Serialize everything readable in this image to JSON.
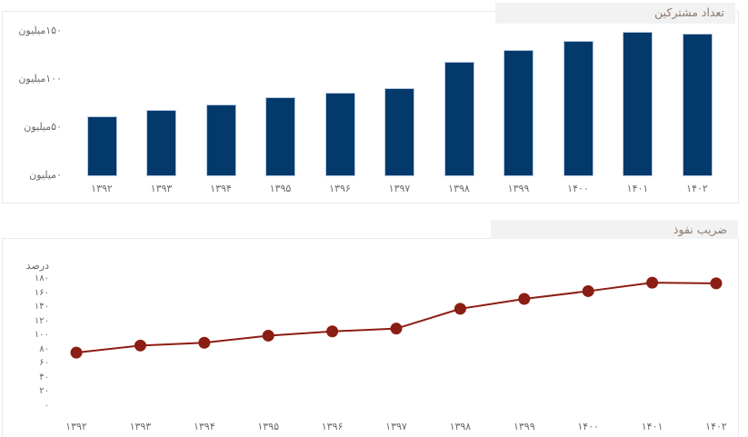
{
  "page": {
    "background": "#ffffff"
  },
  "chart_data": [
    {
      "type": "bar",
      "title": "تعداد مشترکین",
      "categories": [
        "۱۳۹۲",
        "۱۳۹۳",
        "۱۳۹۴",
        "۱۳۹۵",
        "۱۳۹۶",
        "۱۳۹۷",
        "۱۳۹۸",
        "۱۳۹۹",
        "۱۴۰۰",
        "۱۴۰۱",
        "۱۴۰۲"
      ],
      "values": [
        62,
        69,
        75,
        82,
        87,
        92,
        119,
        131,
        141,
        150,
        148
      ],
      "xlabel": "",
      "ylabel": "",
      "ylim": [
        0,
        155
      ],
      "grid": false,
      "legend": "none",
      "yticks": [
        {
          "value": 0,
          "label": "۰میلیون"
        },
        {
          "value": 50,
          "label": "۵۰میلیون"
        },
        {
          "value": 100,
          "label": "۱۰۰میلیون"
        },
        {
          "value": 150,
          "label": "۱۵۰میلیون"
        }
      ],
      "bar_color": "#04396b",
      "bar_edge_color": "#b3c9e0",
      "axis_label_color": "#6a6a6a",
      "title_color": "#8c7a6e",
      "title_background": "#f2f2f2"
    },
    {
      "type": "line",
      "title": "ضریب نفوذ",
      "categories": [
        "۱۳۹۲",
        "۱۳۹۳",
        "۱۳۹۴",
        "۱۳۹۵",
        "۱۳۹۶",
        "۱۳۹۷",
        "۱۳۹۸",
        "۱۳۹۹",
        "۱۴۰۰",
        "۱۴۰۱",
        "۱۴۰۲"
      ],
      "values": [
        77,
        87,
        91,
        101,
        107,
        111,
        139,
        153,
        164,
        176,
        175
      ],
      "xlabel": "",
      "ylabel": "درصد",
      "ylim": [
        0,
        190
      ],
      "grid": false,
      "legend": "none",
      "yticks": [
        {
          "value": 0,
          "label": "۰"
        },
        {
          "value": 20,
          "label": "۲۰"
        },
        {
          "value": 40,
          "label": "۴۰"
        },
        {
          "value": 60,
          "label": "۶۰"
        },
        {
          "value": 80,
          "label": "۸۰"
        },
        {
          "value": 100,
          "label": "۱۰۰"
        },
        {
          "value": 120,
          "label": "۱۲۰"
        },
        {
          "value": 140,
          "label": "۱۴۰"
        },
        {
          "value": 160,
          "label": "۱۶۰"
        },
        {
          "value": 180,
          "label": "۱۸۰"
        }
      ],
      "line_color": "#8b1d12",
      "marker_color": "#8b1d12",
      "axis_label_color": "#6a6a6a",
      "title_color": "#8c7a6e",
      "title_background": "#f2f2f2"
    }
  ]
}
